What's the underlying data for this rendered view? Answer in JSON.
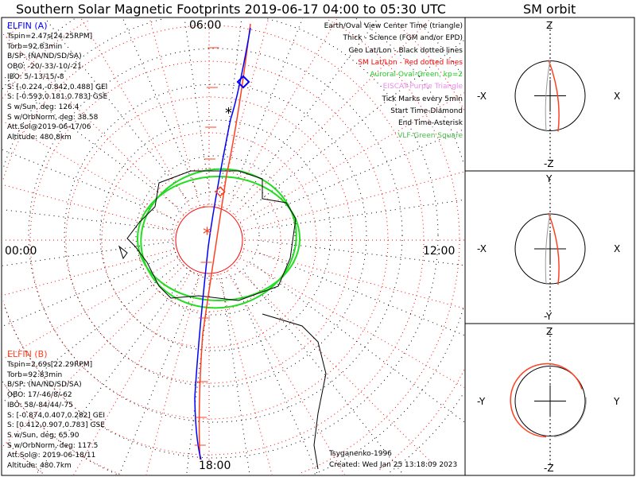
{
  "title": "Southern Solar Magnetic Footprints 2019-06-17 04:00 to 05:30 UTC",
  "sm_title": "SM orbit",
  "elfin_a": {
    "name": "ELFIN (A)",
    "color": "#0000ff",
    "lines": [
      "Tspin=2.47s[24.25RPM]",
      "Torb=92.83min",
      "B/SP: (NA/ND/SD/SA)",
      "OBO: -20/-33/-10/-21",
      "IBO: 5/-13/15/-8",
      "S: [-0.224,-0.842,0.488] GEI",
      "S: [-0.593,0.181,0.783] GSE",
      "S w/Sun, deg: 126.4",
      "S w/OrbNorm, deg: 38.58",
      "Att.Sol@2019-06-17/06",
      "Altitude: 480.8km"
    ]
  },
  "elfin_b": {
    "name": "ELFIN (B)",
    "color": "#ff4020",
    "lines": [
      "Tspin=2.69s[22.29RPM]",
      "Torb=92.83min",
      "B/SP: (NA/ND/SD/SA)",
      "OBO: 17/-46/8/-62",
      "IBO: 58/-84/44/-75",
      "S: [-0.874,0.407,0.282] GEI",
      "S: [0.412,0.907,0.783] GSE",
      "S w/Sun, deg: 65.90",
      "S w/OrbNorm, deg: 117.5",
      "Att.Sol@: 2019-06-18/11",
      "Altitude: 480.7km"
    ]
  },
  "legend": [
    {
      "text": "Earth/Oval View Center Time (triangle)",
      "color": "#000000"
    },
    {
      "text": "Thick - Science (FGM and/or EPD)",
      "color": "#000000"
    },
    {
      "text": "Geo Lat/Lon - Black dotted lines",
      "color": "#000000"
    },
    {
      "text": "SM Lat/Lon - Red dotted lines",
      "color": "#ff0000"
    },
    {
      "text": "Auroral Oval-Green, kp=2",
      "color": "#22cc22"
    },
    {
      "text": "EISCAT-Purple Triangle",
      "color": "#ee88ee"
    },
    {
      "text": "Tick Marks every 5min",
      "color": "#000000"
    },
    {
      "text": "Start Time-Diamond",
      "color": "#000000"
    },
    {
      "text": "End Time-Asterisk",
      "color": "#000000"
    },
    {
      "text": "VLF-Green Square",
      "color": "#44bb44"
    }
  ],
  "mlt_labels": {
    "top": "06:00",
    "bottom": "18:00",
    "left": "00:00",
    "right": "12:00"
  },
  "model": "Tsyganenko-1996",
  "created": "Created: Wed Jan 25 13:18:09 2023",
  "panels": [
    {
      "top": "Z",
      "bottom": "-Z",
      "left": "-X",
      "right": "X"
    },
    {
      "top": "Y",
      "bottom": "-Y",
      "left": "-X",
      "right": "X"
    },
    {
      "top": "Z",
      "bottom": "-Z",
      "left": "-Y",
      "right": "Y"
    }
  ],
  "chart_data": {
    "type": "polar-map",
    "title": "Southern Solar Magnetic Footprints 2019-06-17 04:00 to 05:30 UTC",
    "series": [
      {
        "name": "ELFIN (A)",
        "color": "#0000ff"
      },
      {
        "name": "ELFIN (B)",
        "color": "#ff4020"
      }
    ]
  }
}
